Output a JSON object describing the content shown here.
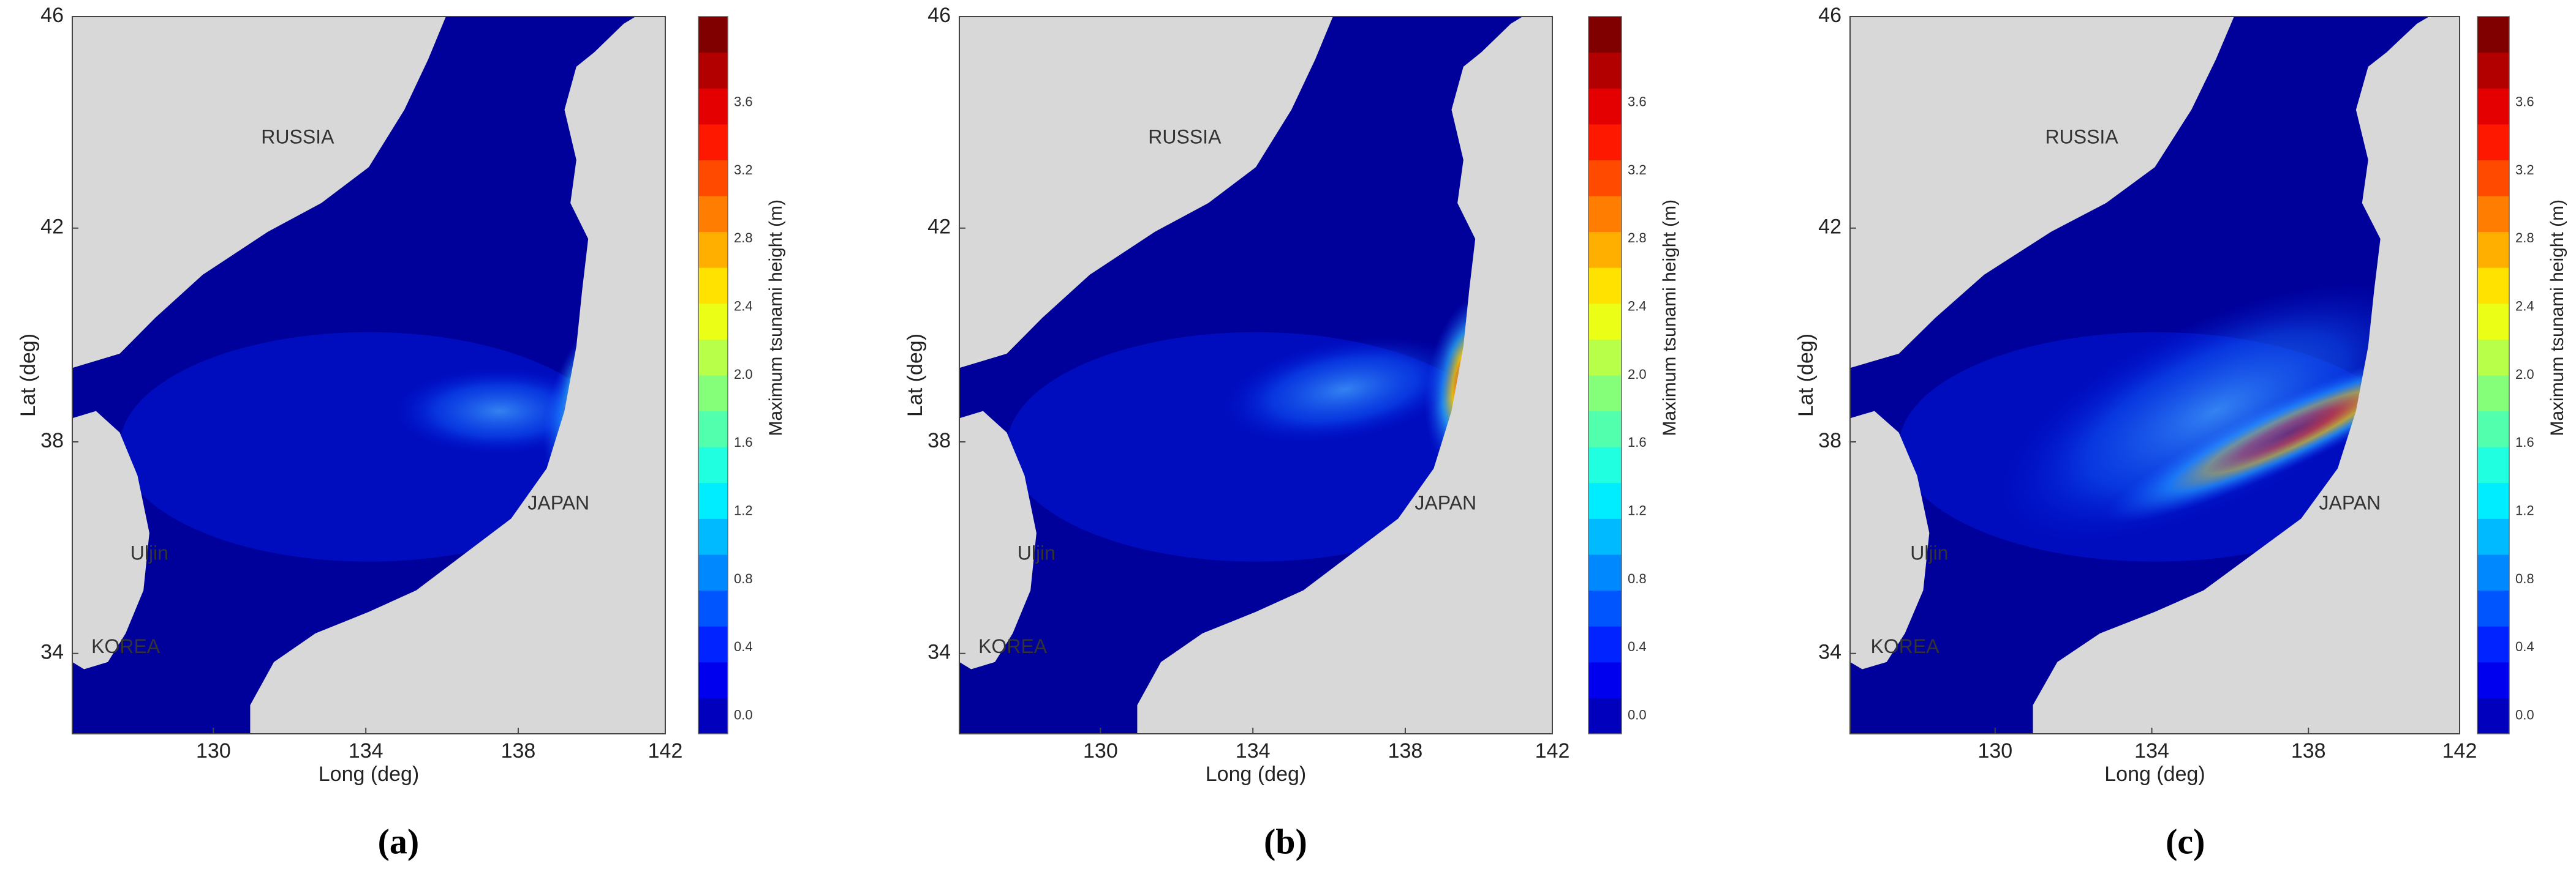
{
  "panels": [
    {
      "label": "(a)",
      "xlabel": "Long (deg)",
      "ylabel": "Lat (deg)",
      "xticks": [
        "130",
        "134",
        "138",
        "142"
      ],
      "yticks": [
        "34",
        "38",
        "42",
        "46"
      ],
      "places": {
        "russia": "RUSSIA",
        "japan": "JAPAN",
        "korea": "KOREA",
        "uljin": "Uljin"
      },
      "colorbar": {
        "label": "Maximum tsunami height (m)",
        "ticks": [
          "0.0",
          "0.4",
          "0.8",
          "1.2",
          "1.6",
          "2.0",
          "2.4",
          "2.8",
          "3.2",
          "3.6"
        ]
      }
    },
    {
      "label": "(b)",
      "xlabel": "Long (deg)",
      "ylabel": "Lat (deg)",
      "xticks": [
        "130",
        "134",
        "138",
        "142"
      ],
      "yticks": [
        "34",
        "38",
        "42",
        "46"
      ],
      "places": {
        "russia": "RUSSIA",
        "japan": "JAPAN",
        "korea": "KOREA",
        "uljin": "Uljin"
      },
      "colorbar": {
        "label": "Maximum tsunami height (m)",
        "ticks": [
          "0.0",
          "0.4",
          "0.8",
          "1.2",
          "1.6",
          "2.0",
          "2.4",
          "2.8",
          "3.2",
          "3.6"
        ]
      }
    },
    {
      "label": "(c)",
      "xlabel": "Long (deg)",
      "ylabel": "Lat (deg)",
      "xticks": [
        "130",
        "134",
        "138",
        "142"
      ],
      "yticks": [
        "34",
        "38",
        "42",
        "46"
      ],
      "places": {
        "russia": "RUSSIA",
        "japan": "JAPAN",
        "korea": "KOREA",
        "uljin": "Uljin"
      },
      "colorbar": {
        "label": "Maximum tsunami height (m)",
        "ticks": [
          "0.0",
          "0.4",
          "0.8",
          "1.2",
          "1.6",
          "2.0",
          "2.4",
          "2.8",
          "3.2",
          "3.6"
        ]
      }
    }
  ]
}
